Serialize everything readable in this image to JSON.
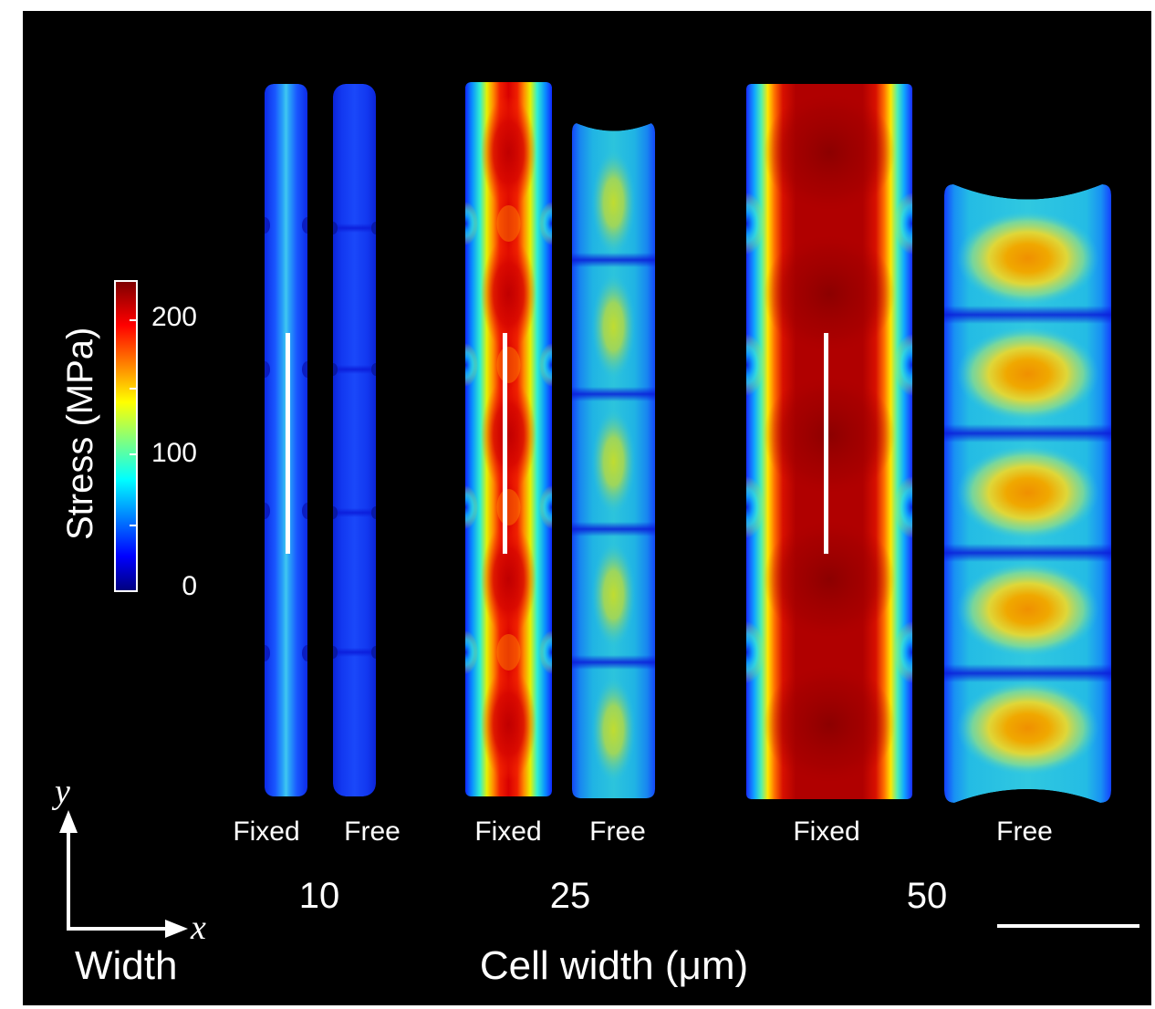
{
  "colorbar": {
    "title": "Stress (MPa)",
    "ticks": [
      "200",
      "100",
      "0"
    ],
    "colormap": [
      "#00007f",
      "#0000ff",
      "#00ffff",
      "#ffff00",
      "#ff0000",
      "#7f0000"
    ]
  },
  "groups": [
    {
      "width": "10",
      "panels": [
        "Fixed",
        "Free"
      ]
    },
    {
      "width": "25",
      "panels": [
        "Fixed",
        "Free"
      ]
    },
    {
      "width": "50",
      "panels": [
        "Fixed",
        "Free"
      ]
    }
  ],
  "x_axis_title": "Cell width (μm)",
  "orientation": {
    "y": "y",
    "x": "x",
    "caption": "Width"
  },
  "colors": {
    "background": "#000000",
    "text": "#ffffff",
    "scale_lines": "#ffffff"
  }
}
